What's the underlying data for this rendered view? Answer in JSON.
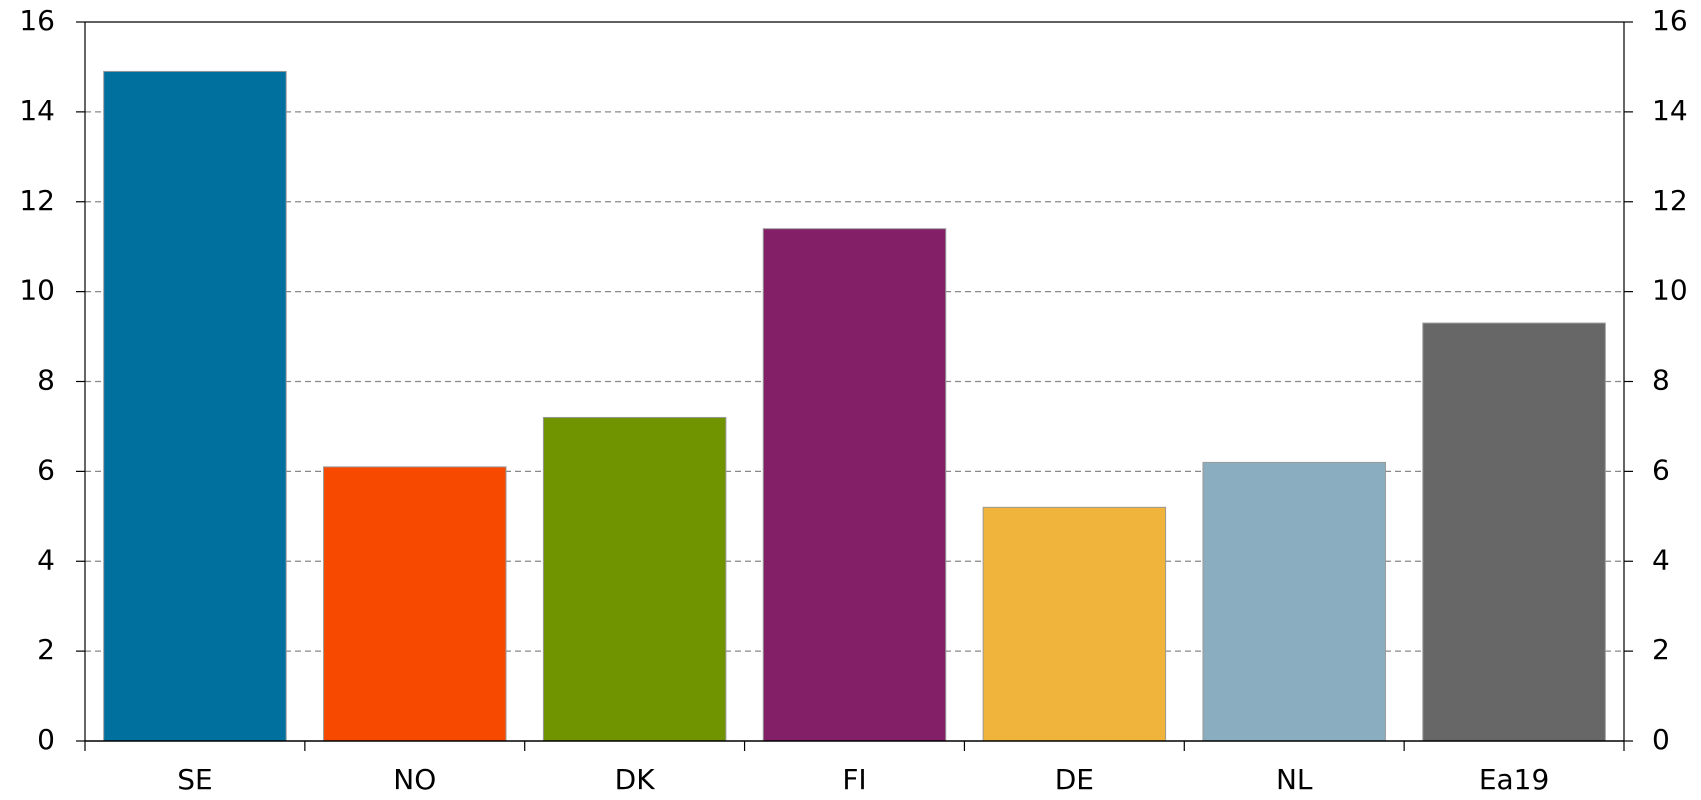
{
  "chart_data": {
    "type": "bar",
    "categories": [
      "SE",
      "NO",
      "DK",
      "FI",
      "DE",
      "NL",
      "Ea19"
    ],
    "values": [
      14.9,
      6.1,
      7.2,
      11.4,
      5.2,
      6.2,
      9.3
    ],
    "colors": [
      "#00709f",
      "#f74a00",
      "#709300",
      "#821f67",
      "#f0b43c",
      "#8aaec0",
      "#676767"
    ],
    "ylim": [
      0,
      16
    ],
    "yticks": [
      0,
      2,
      4,
      6,
      8,
      10,
      12,
      14,
      16
    ],
    "y2lim": [
      0,
      16
    ],
    "y2ticks": [
      0,
      2,
      4,
      6,
      8,
      10,
      12,
      14,
      16
    ],
    "grid": true
  }
}
